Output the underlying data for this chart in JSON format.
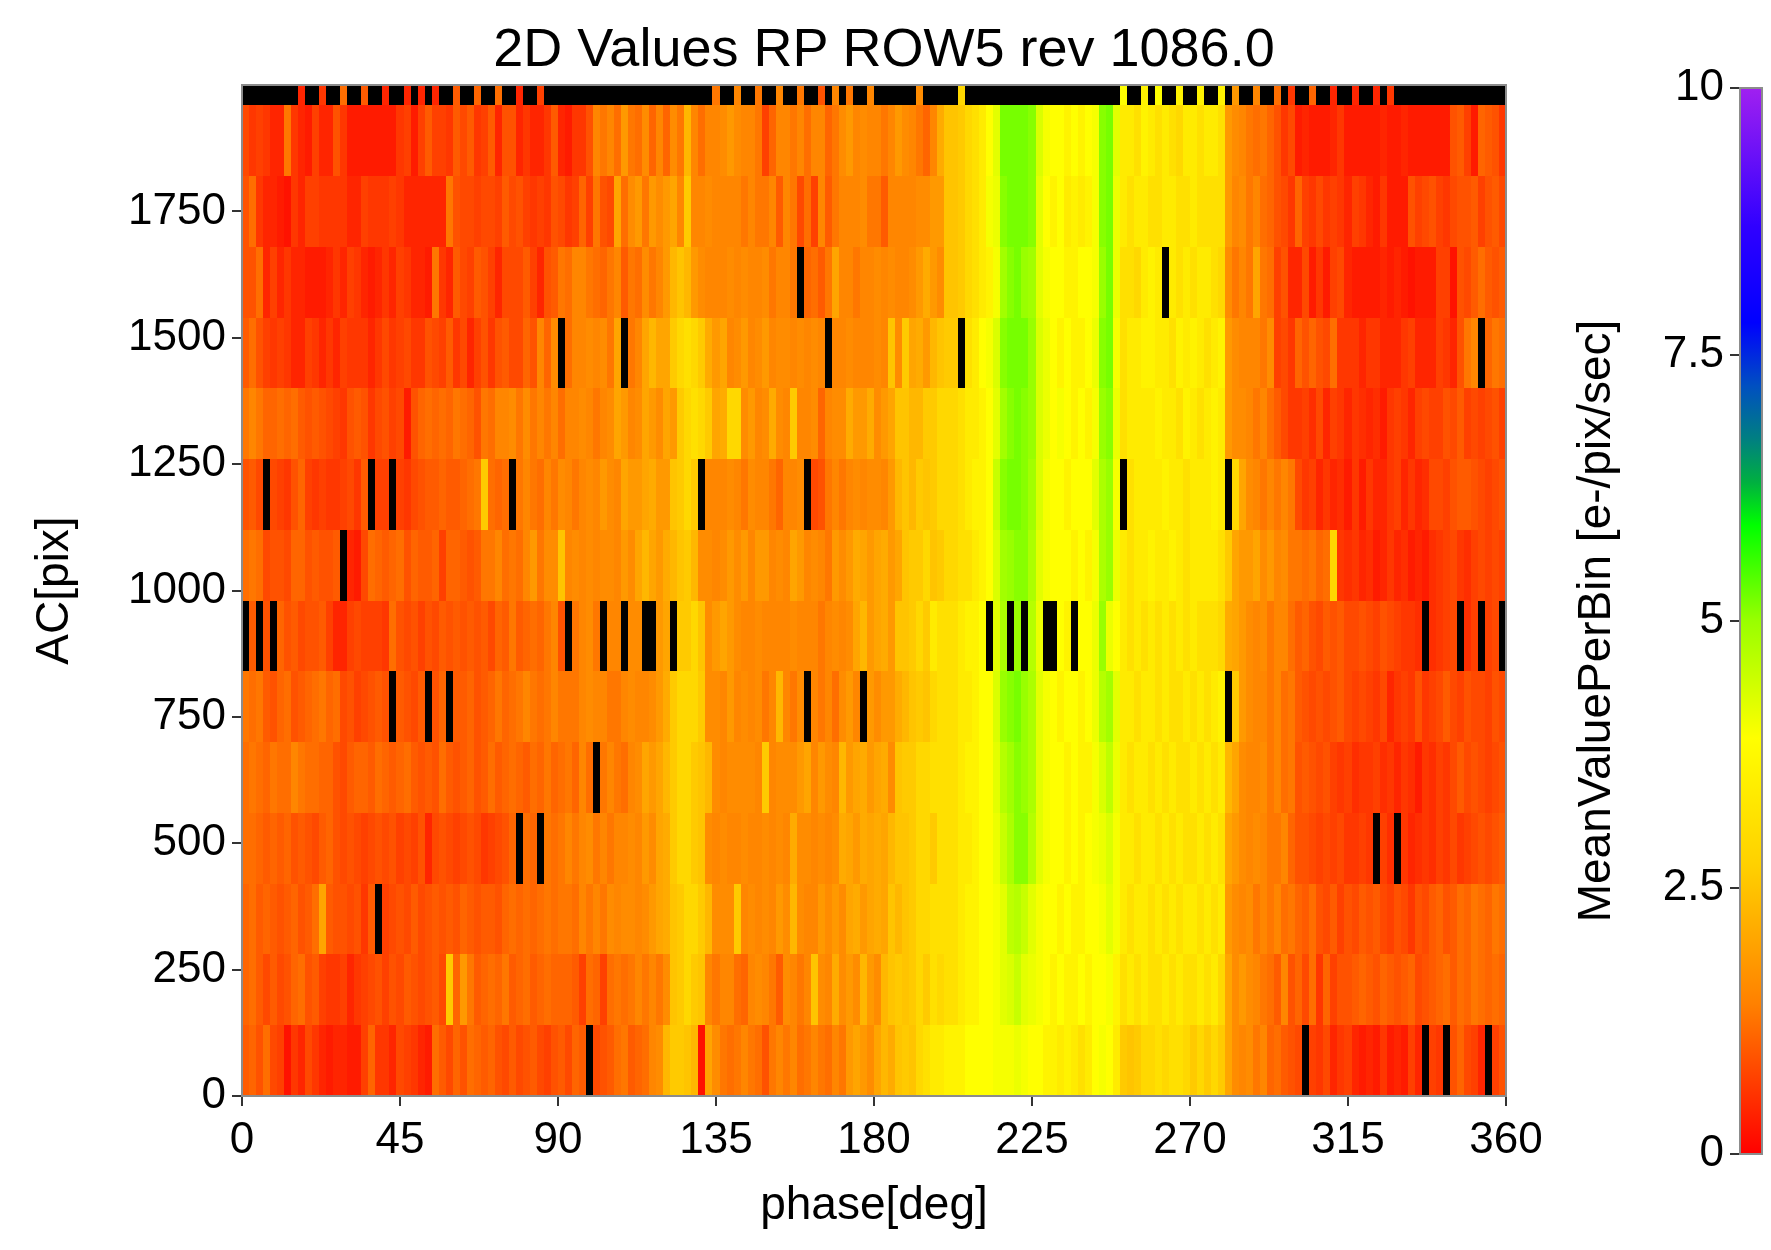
{
  "chart_data": {
    "type": "heatmap",
    "title": "2D Values RP ROW5 rev 1086.0",
    "xlabel": "phase[deg]",
    "ylabel": "AC[pix]",
    "clabel": "MeanValuePerBin [e-/pix/sec]",
    "x": [
      1,
      3,
      5,
      7,
      9,
      11,
      13,
      15,
      17,
      19,
      21,
      23,
      25,
      27,
      29,
      31,
      33,
      35,
      37,
      39,
      41,
      43,
      45,
      47,
      49,
      51,
      53,
      55,
      57,
      59,
      61,
      63,
      65,
      67,
      69,
      71,
      73,
      75,
      77,
      79,
      81,
      83,
      85,
      87,
      89,
      91,
      93,
      95,
      97,
      99,
      101,
      103,
      105,
      107,
      109,
      111,
      113,
      115,
      117,
      119,
      121,
      123,
      125,
      127,
      129,
      131,
      133,
      135,
      137,
      139,
      141,
      143,
      145,
      147,
      149,
      151,
      153,
      155,
      157,
      159,
      161,
      163,
      165,
      167,
      169,
      171,
      173,
      175,
      177,
      179,
      181,
      183,
      185,
      187,
      189,
      191,
      193,
      195,
      197,
      199,
      201,
      203,
      205,
      207,
      209,
      211,
      213,
      215,
      217,
      219,
      221,
      223,
      225,
      227,
      229,
      231,
      233,
      235,
      237,
      239,
      241,
      243,
      245,
      247,
      249,
      251,
      253,
      255,
      257,
      259,
      261,
      263,
      265,
      267,
      269,
      271,
      273,
      275,
      277,
      279,
      281,
      283,
      285,
      287,
      289,
      291,
      293,
      295,
      297,
      299,
      301,
      303,
      305,
      307,
      309,
      311,
      313,
      315,
      317,
      319,
      321,
      323,
      325,
      327,
      329,
      331,
      333,
      335,
      337,
      339,
      341,
      343,
      345,
      347,
      349,
      351,
      353,
      355,
      357,
      359
    ],
    "y": [
      1980,
      1890,
      1750,
      1610,
      1470,
      1330,
      1190,
      1050,
      910,
      770,
      630,
      490,
      350,
      210,
      70
    ],
    "cells": [
      [
        null,
        null,
        null,
        null,
        null,
        null,
        null,
        null,
        0.4,
        null,
        null,
        0.6,
        null,
        null,
        1.2,
        null,
        null,
        1.0,
        null,
        null,
        0.4,
        null,
        null,
        0.4,
        null,
        0.4,
        null,
        0.4,
        null,
        null,
        1.0,
        null,
        null,
        1.1,
        null,
        null,
        1.2,
        null,
        null,
        0.4,
        null,
        null,
        0.7,
        null,
        null,
        null,
        null,
        null,
        null,
        null,
        null,
        null,
        null,
        null,
        null,
        null,
        null,
        null,
        null,
        null,
        null,
        null,
        null,
        null,
        null,
        null,
        null,
        1.3,
        null,
        null,
        1.5,
        null,
        null,
        1.3,
        null,
        null,
        1.5,
        null,
        null,
        1.3,
        null,
        null,
        0.9,
        null,
        1.5,
        null,
        1.3,
        null,
        null,
        1.5,
        null,
        null,
        null,
        null,
        null,
        null,
        1.6,
        null,
        null,
        null,
        null,
        null,
        2.9,
        null,
        null,
        null,
        null,
        null,
        null,
        null,
        null,
        null,
        null,
        null,
        null,
        null,
        null,
        null,
        null,
        null,
        null,
        null,
        null,
        null,
        null,
        3.9,
        null,
        null,
        3.6,
        null,
        3.9,
        null,
        null,
        3.6,
        null,
        null,
        3.6,
        null,
        null,
        3.6,
        null,
        1.8,
        null,
        null,
        1.5,
        null,
        null,
        1.2,
        null,
        0.6,
        null,
        null,
        1.1,
        null,
        null,
        0.4,
        null,
        null,
        0.4,
        null,
        null,
        0.4,
        null,
        0.6,
        null,
        null,
        null,
        null,
        null,
        null,
        null,
        null,
        null,
        null,
        null,
        null,
        null,
        null,
        null,
        null
      ],
      [
        0.8,
        0.6,
        0.7,
        0.6,
        0.4,
        0.4,
        1.3,
        0.6,
        0.4,
        0.3,
        0.7,
        0.4,
        0.4,
        0.9,
        0.6,
        0.3,
        0.3,
        0.3,
        0.3,
        0.3,
        0.3,
        0.3,
        0.6,
        0.7,
        0.3,
        0.7,
        1.0,
        0.7,
        0.7,
        0.6,
        1.0,
        0.8,
        1.0,
        0.6,
        0.7,
        1.0,
        0.4,
        0.9,
        0.9,
        0.4,
        0.6,
        0.4,
        0.4,
        0.6,
        1.0,
        0.4,
        0.3,
        0.6,
        0.6,
        0.9,
        1.5,
        1.3,
        1.5,
        1.2,
        1.8,
        1.3,
        1.2,
        1.6,
        1.1,
        1.5,
        1.1,
        1.6,
        1.3,
        2.3,
        1.5,
        1.2,
        1.5,
        1.5,
        1.6,
        1.8,
        1.6,
        1.5,
        1.5,
        1.3,
        0.7,
        1.1,
        1.5,
        1.5,
        1.3,
        1.5,
        1.2,
        1.5,
        1.5,
        1.1,
        1.3,
        1.6,
        1.8,
        1.5,
        1.6,
        1.5,
        1.5,
        1.3,
        1.5,
        1.8,
        1.6,
        1.5,
        1.3,
        1.1,
        1.5,
        2.1,
        2.5,
        2.5,
        2.6,
        2.9,
        3.1,
        3.4,
        3.9,
        4.2,
        5.2,
        5.2,
        5.2,
        5.2,
        5.1,
        4.3,
        4.0,
        3.9,
        3.9,
        3.6,
        3.9,
        3.6,
        3.9,
        4.0,
        5.1,
        5.2,
        4.2,
        3.4,
        3.4,
        3.1,
        3.6,
        3.4,
        3.1,
        3.4,
        3.1,
        2.9,
        3.4,
        3.4,
        3.1,
        3.4,
        3.4,
        3.1,
        1.8,
        1.6,
        1.5,
        1.3,
        1.2,
        1.3,
        1.1,
        0.9,
        0.6,
        0.8,
        0.3,
        0.4,
        0.3,
        0.3,
        0.3,
        0.4,
        0.6,
        0.3,
        0.3,
        0.3,
        0.3,
        0.3,
        0.4,
        0.3,
        0.3,
        0.4,
        0.3,
        0.3,
        0.3,
        0.3,
        0.3,
        0.3,
        0.9,
        1.0,
        0.7,
        0.3,
        1.1,
        1.0,
        0.9,
        0.6
      ],
      [
        0.9,
        1.2,
        0.6,
        0.4,
        0.4,
        0.3,
        0.2,
        0.6,
        0.4,
        0.7,
        0.7,
        0.6,
        0.6,
        0.6,
        0.6,
        0.4,
        0.4,
        0.7,
        0.6,
        0.6,
        0.6,
        0.7,
        0.6,
        0.4,
        0.4,
        0.4,
        0.4,
        0.4,
        0.4,
        1.3,
        0.9,
        0.8,
        0.8,
        0.7,
        0.8,
        0.8,
        0.7,
        1.0,
        0.8,
        0.9,
        0.7,
        0.6,
        0.7,
        0.6,
        0.9,
        0.8,
        0.6,
        0.7,
        1.1,
        0.7,
        1.3,
        0.9,
        0.8,
        2.0,
        1.2,
        1.6,
        1.8,
        1.3,
        1.8,
        1.6,
        1.8,
        2.0,
        1.5,
        2.6,
        1.5,
        1.5,
        1.6,
        1.5,
        1.5,
        1.5,
        1.5,
        1.3,
        1.5,
        1.3,
        1.3,
        1.5,
        1.0,
        1.5,
        1.3,
        0.8,
        1.2,
        0.7,
        1.5,
        1.0,
        1.3,
        1.5,
        1.5,
        1.5,
        1.6,
        1.3,
        1.3,
        1.0,
        1.5,
        1.5,
        1.5,
        1.5,
        1.6,
        1.6,
        1.8,
        1.8,
        2.5,
        2.5,
        2.6,
        2.9,
        3.1,
        3.4,
        4.0,
        4.1,
        5.1,
        5.2,
        5.2,
        5.2,
        5.1,
        4.2,
        3.9,
        3.6,
        3.9,
        3.4,
        3.6,
        3.4,
        3.6,
        4.0,
        5.1,
        5.2,
        4.1,
        3.4,
        3.1,
        3.4,
        3.4,
        3.1,
        3.1,
        3.4,
        3.4,
        3.1,
        3.1,
        3.4,
        3.1,
        3.1,
        3.1,
        3.1,
        1.8,
        1.5,
        1.6,
        1.3,
        1.5,
        1.2,
        1.1,
        0.9,
        0.8,
        0.6,
        1.1,
        0.7,
        0.6,
        0.8,
        0.6,
        0.7,
        0.6,
        0.4,
        0.7,
        0.6,
        0.4,
        0.3,
        0.6,
        0.3,
        0.3,
        0.3,
        0.9,
        0.7,
        0.8,
        0.9,
        0.7,
        0.6,
        0.8,
        0.9,
        0.9,
        1.0,
        0.7,
        0.9,
        1.0,
        0.8
      ],
      [
        0.9,
        0.9,
        1.2,
        0.4,
        0.7,
        0.4,
        0.6,
        0.4,
        0.4,
        0.3,
        0.3,
        0.3,
        0.4,
        0.6,
        0.4,
        0.7,
        0.6,
        0.4,
        0.3,
        0.4,
        0.6,
        0.4,
        0.7,
        0.6,
        0.4,
        0.4,
        0.3,
        1.3,
        0.6,
        0.4,
        1.0,
        0.8,
        0.7,
        1.0,
        0.9,
        0.7,
        0.4,
        0.8,
        0.8,
        0.8,
        1.0,
        0.7,
        0.4,
        0.9,
        1.0,
        1.3,
        1.2,
        1.5,
        1.5,
        1.3,
        1.2,
        1.1,
        1.3,
        1.5,
        1.0,
        1.3,
        1.2,
        1.6,
        1.3,
        1.5,
        1.8,
        2.3,
        2.5,
        2.3,
        1.8,
        1.6,
        1.5,
        1.5,
        1.5,
        1.6,
        1.5,
        1.6,
        1.5,
        1.5,
        1.6,
        1.3,
        1.5,
        1.5,
        1.3,
        null,
        1.1,
        1.2,
        1.0,
        1.3,
        2.0,
        1.5,
        1.5,
        1.3,
        1.5,
        1.5,
        1.6,
        1.5,
        1.6,
        1.5,
        1.5,
        1.6,
        1.8,
        2.1,
        1.8,
        1.6,
        2.5,
        2.5,
        2.6,
        2.9,
        3.1,
        3.4,
        3.6,
        4.0,
        4.9,
        5.1,
        5.2,
        5.0,
        4.9,
        4.2,
        4.0,
        3.9,
        3.9,
        3.6,
        3.6,
        3.9,
        3.9,
        4.0,
        5.0,
        5.2,
        4.1,
        3.1,
        3.1,
        2.9,
        3.4,
        3.6,
        3.4,
        null,
        3.4,
        3.1,
        3.4,
        3.1,
        3.4,
        3.4,
        3.1,
        2.9,
        1.6,
        1.3,
        1.5,
        1.3,
        2.0,
        1.3,
        1.2,
        0.7,
        0.9,
        0.4,
        0.4,
        0.8,
        0.3,
        0.6,
        0.3,
        0.7,
        0.8,
        0.4,
        0.3,
        0.3,
        0.3,
        0.3,
        0.4,
        0.3,
        0.4,
        0.3,
        0.2,
        0.3,
        0.3,
        0.3,
        0.7,
        0.7,
        0.2,
        0.9,
        0.8,
        1.0,
        1.2,
        1.0,
        0.9,
        1.0
      ],
      [
        1.0,
        1.2,
        0.9,
        0.7,
        0.6,
        0.7,
        0.6,
        0.4,
        0.4,
        0.7,
        0.6,
        0.4,
        0.6,
        0.4,
        0.7,
        0.6,
        0.6,
        0.6,
        0.4,
        0.6,
        0.8,
        0.6,
        0.7,
        0.8,
        0.6,
        0.6,
        0.9,
        0.8,
        0.7,
        1.0,
        0.6,
        0.8,
        0.4,
        0.7,
        0.9,
        0.6,
        0.9,
        1.0,
        0.8,
        0.8,
        1.1,
        0.9,
        1.5,
        1.1,
        1.6,
        null,
        1.2,
        1.5,
        1.5,
        1.6,
        1.5,
        1.6,
        1.3,
        2.0,
        null,
        1.3,
        1.5,
        2.0,
        2.3,
        2.0,
        2.0,
        2.6,
        2.9,
        3.1,
        2.9,
        2.6,
        2.1,
        1.8,
        2.0,
        1.5,
        1.6,
        1.8,
        1.5,
        1.6,
        1.8,
        1.5,
        1.6,
        1.6,
        1.5,
        1.6,
        1.5,
        1.6,
        1.5,
        null,
        1.5,
        1.5,
        1.6,
        1.5,
        1.5,
        1.5,
        1.6,
        1.5,
        2.5,
        1.6,
        2.6,
        2.0,
        2.1,
        1.8,
        2.3,
        2.5,
        2.6,
        2.6,
        null,
        3.1,
        3.4,
        3.9,
        4.0,
        4.3,
        5.1,
        5.2,
        5.2,
        5.2,
        5.0,
        4.3,
        4.1,
        3.9,
        3.6,
        3.9,
        3.6,
        3.6,
        3.9,
        4.1,
        5.1,
        5.2,
        4.0,
        3.1,
        3.4,
        3.4,
        3.6,
        3.6,
        3.4,
        3.4,
        3.1,
        3.6,
        3.4,
        3.6,
        3.4,
        3.1,
        3.4,
        3.6,
        1.8,
        1.6,
        1.5,
        1.5,
        1.5,
        1.3,
        1.6,
        0.7,
        0.8,
        0.6,
        1.1,
        0.9,
        1.1,
        0.9,
        0.8,
        1.2,
        0.6,
        0.6,
        0.6,
        0.4,
        0.6,
        0.6,
        0.4,
        0.4,
        0.4,
        0.6,
        0.7,
        0.4,
        0.4,
        0.4,
        0.7,
        0.6,
        0.4,
        0.9,
        1.3,
        1.5,
        null,
        1.1,
        1.3,
        1.2
      ],
      [
        1.3,
        1.5,
        1.3,
        1.1,
        1.1,
        1.2,
        1.1,
        1.2,
        1.0,
        0.9,
        1.0,
        0.9,
        0.8,
        0.7,
        0.6,
        0.9,
        1.0,
        0.9,
        0.6,
        0.8,
        0.9,
        0.7,
        0.8,
        0.3,
        0.9,
        1.1,
        1.2,
        1.1,
        1.2,
        1.1,
        1.3,
        1.2,
        1.1,
        0.9,
        1.3,
        1.2,
        1.5,
        1.5,
        1.6,
        1.3,
        1.6,
        1.3,
        1.5,
        1.3,
        1.5,
        1.2,
        1.5,
        1.5,
        1.6,
        1.5,
        1.3,
        1.5,
        1.6,
        2.0,
        1.8,
        1.5,
        1.6,
        2.0,
        1.8,
        1.6,
        2.0,
        1.8,
        2.6,
        2.9,
        3.1,
        2.9,
        2.6,
        2.0,
        2.1,
        2.9,
        2.9,
        1.6,
        1.8,
        1.5,
        1.6,
        2.1,
        1.6,
        1.5,
        2.6,
        1.5,
        1.5,
        1.6,
        1.1,
        1.5,
        1.6,
        1.6,
        2.1,
        1.8,
        1.8,
        2.1,
        1.6,
        1.8,
        2.0,
        2.5,
        2.5,
        2.3,
        2.3,
        2.6,
        2.6,
        2.9,
        2.9,
        2.9,
        3.1,
        3.4,
        3.4,
        3.6,
        3.9,
        4.2,
        4.9,
        5.1,
        5.2,
        5.1,
        5.0,
        4.3,
        4.1,
        3.9,
        4.0,
        3.9,
        3.6,
        3.9,
        3.6,
        4.0,
        5.0,
        5.1,
        4.1,
        3.1,
        3.4,
        3.4,
        3.4,
        3.4,
        3.6,
        3.4,
        3.4,
        3.1,
        3.6,
        3.4,
        3.1,
        3.4,
        3.6,
        3.4,
        1.8,
        1.6,
        1.6,
        1.5,
        1.3,
        1.5,
        1.2,
        1.0,
        0.8,
        0.6,
        0.6,
        0.7,
        0.5,
        0.8,
        0.4,
        0.7,
        0.6,
        0.4,
        0.6,
        0.5,
        0.4,
        0.5,
        0.3,
        0.6,
        0.7,
        0.6,
        0.4,
        0.7,
        0.8,
        0.7,
        0.7,
        0.9,
        0.8,
        1.0,
        0.7,
        0.8,
        0.7,
        0.8,
        0.9,
        0.7
      ],
      [
        0.9,
        1.0,
        0.8,
        null,
        0.8,
        0.7,
        0.6,
        0.9,
        1.1,
        0.7,
        0.6,
        0.7,
        0.6,
        0.6,
        0.7,
        0.8,
        0.6,
        1.0,
        null,
        0.7,
        0.7,
        null,
        0.7,
        0.6,
        0.8,
        0.9,
        1.0,
        1.0,
        1.1,
        1.0,
        1.0,
        1.1,
        1.2,
        1.3,
        2.6,
        1.2,
        1.1,
        1.2,
        null,
        1.3,
        1.5,
        1.3,
        1.2,
        1.5,
        1.3,
        1.6,
        1.5,
        1.3,
        1.5,
        1.6,
        1.5,
        1.8,
        1.6,
        1.5,
        2.0,
        1.8,
        1.8,
        2.0,
        2.1,
        1.8,
        1.8,
        2.5,
        2.6,
        2.9,
        2.6,
        null,
        1.5,
        1.5,
        1.5,
        1.6,
        1.5,
        1.3,
        1.6,
        1.5,
        1.5,
        1.3,
        1.1,
        1.5,
        1.5,
        1.6,
        null,
        0.8,
        0.9,
        1.3,
        1.5,
        1.3,
        1.5,
        1.6,
        1.5,
        1.6,
        1.6,
        1.5,
        1.8,
        2.3,
        2.5,
        2.3,
        2.6,
        2.5,
        2.6,
        2.9,
        2.9,
        2.9,
        3.1,
        3.4,
        3.6,
        3.6,
        3.9,
        4.5,
        5.1,
        5.2,
        5.2,
        5.1,
        4.9,
        4.3,
        4.0,
        3.9,
        3.9,
        3.6,
        3.9,
        3.9,
        3.9,
        4.2,
        4.8,
        5.0,
        4.0,
        null,
        3.1,
        3.4,
        3.4,
        3.4,
        3.4,
        3.6,
        3.4,
        3.4,
        3.1,
        3.4,
        3.4,
        3.4,
        3.6,
        3.4,
        null,
        2.9,
        2.0,
        1.6,
        1.5,
        1.3,
        1.5,
        1.3,
        1.5,
        1.3,
        0.8,
        0.6,
        0.7,
        0.4,
        0.6,
        0.4,
        0.5,
        0.3,
        0.6,
        0.3,
        0.6,
        0.4,
        0.4,
        0.6,
        0.7,
        0.4,
        0.6,
        0.4,
        0.5,
        0.8,
        0.8,
        0.7,
        0.9,
        1.0,
        1.0,
        0.9,
        0.8,
        0.7,
        0.8,
        0.9
      ],
      [
        1.2,
        1.3,
        1.2,
        0.8,
        0.9,
        0.9,
        0.8,
        1.1,
        1.1,
        0.9,
        1.0,
        0.9,
        0.9,
        1.0,
        null,
        0.4,
        0.3,
        0.8,
        1.2,
        1.1,
        1.0,
        1.1,
        1.2,
        0.9,
        1.1,
        1.0,
        1.0,
        1.1,
        0.7,
        1.1,
        1.1,
        1.0,
        0.9,
        1.0,
        1.3,
        1.3,
        1.5,
        1.2,
        1.3,
        1.2,
        1.5,
        1.8,
        1.3,
        1.6,
        1.6,
        2.5,
        1.5,
        1.6,
        1.5,
        1.6,
        1.5,
        1.6,
        1.6,
        1.5,
        1.8,
        1.6,
        2.0,
        2.3,
        2.0,
        1.8,
        2.1,
        2.3,
        2.5,
        2.6,
        2.3,
        1.6,
        1.6,
        1.5,
        1.6,
        1.8,
        1.6,
        1.8,
        1.5,
        1.8,
        1.8,
        1.5,
        1.6,
        1.5,
        2.0,
        1.8,
        1.5,
        1.6,
        1.5,
        1.3,
        1.8,
        1.6,
        1.8,
        2.1,
        2.0,
        1.8,
        2.0,
        2.1,
        1.8,
        2.0,
        2.5,
        2.6,
        2.6,
        2.9,
        2.5,
        2.6,
        2.9,
        2.9,
        3.1,
        3.1,
        3.4,
        3.6,
        3.9,
        4.3,
        4.9,
        5.0,
        5.1,
        5.1,
        4.8,
        4.2,
        4.0,
        3.9,
        3.9,
        3.9,
        3.6,
        3.9,
        3.6,
        4.0,
        4.8,
        5.0,
        4.1,
        3.4,
        3.1,
        3.4,
        3.4,
        3.6,
        3.4,
        3.4,
        3.6,
        3.4,
        3.1,
        3.4,
        3.4,
        3.4,
        3.4,
        3.1,
        2.6,
        2.0,
        1.8,
        1.8,
        2.0,
        1.6,
        1.8,
        1.5,
        1.6,
        1.3,
        1.3,
        1.2,
        1.3,
        1.1,
        1.2,
        2.9,
        0.6,
        0.5,
        0.6,
        0.4,
        0.5,
        0.3,
        0.4,
        0.6,
        0.4,
        0.5,
        0.3,
        0.4,
        0.3,
        0.5,
        0.6,
        0.7,
        0.8,
        0.6,
        0.5,
        0.7,
        0.8,
        0.7,
        0.8,
        0.7
      ],
      [
        null,
        1.0,
        null,
        0.9,
        null,
        1.1,
        0.9,
        1.0,
        0.8,
        0.9,
        0.9,
        1.0,
        0.7,
        0.4,
        0.4,
        0.7,
        0.8,
        0.7,
        0.7,
        0.7,
        0.6,
        1.2,
        0.9,
        0.8,
        0.9,
        0.7,
        0.9,
        0.8,
        1.0,
        0.9,
        1.0,
        0.9,
        1.0,
        0.9,
        1.0,
        0.8,
        1.1,
        1.0,
        1.3,
        1.0,
        1.1,
        1.2,
        1.1,
        1.3,
        1.5,
        0.9,
        null,
        1.3,
        1.5,
        1.6,
        1.3,
        null,
        1.5,
        1.5,
        null,
        1.6,
        1.6,
        null,
        null,
        1.8,
        2.0,
        null,
        2.6,
        2.6,
        2.9,
        2.5,
        1.6,
        1.8,
        2.0,
        1.8,
        1.6,
        1.5,
        1.5,
        1.6,
        1.5,
        1.5,
        1.5,
        1.5,
        1.6,
        1.5,
        1.5,
        1.5,
        1.3,
        1.5,
        1.6,
        1.5,
        1.6,
        2.0,
        2.3,
        1.8,
        2.0,
        2.1,
        1.8,
        2.5,
        2.5,
        2.6,
        2.9,
        2.6,
        3.4,
        3.1,
        3.1,
        3.1,
        3.4,
        3.6,
        3.6,
        3.9,
        null,
        4.2,
        4.8,
        null,
        5.0,
        null,
        4.7,
        4.1,
        null,
        null,
        3.9,
        3.6,
        null,
        3.9,
        3.9,
        4.1,
        5.0,
        4.1,
        3.9,
        3.4,
        3.1,
        3.4,
        3.1,
        3.4,
        3.1,
        3.4,
        3.1,
        3.4,
        3.1,
        3.4,
        3.1,
        3.1,
        3.1,
        2.9,
        2.1,
        2.0,
        1.8,
        1.6,
        1.5,
        1.6,
        1.3,
        1.5,
        1.5,
        1.2,
        1.0,
        1.1,
        0.9,
        0.8,
        1.0,
        0.9,
        1.0,
        0.8,
        0.8,
        0.9,
        0.8,
        0.7,
        0.9,
        0.8,
        0.7,
        0.6,
        0.6,
        0.5,
        null,
        0.5,
        0.6,
        0.7,
        0.8,
        null,
        0.5,
        0.7,
        null,
        0.7,
        0.8,
        null
      ],
      [
        1.3,
        1.2,
        1.3,
        1.0,
        0.9,
        1.1,
        1.2,
        0.9,
        1.0,
        1.1,
        1.2,
        1.3,
        1.1,
        1.2,
        0.8,
        0.9,
        0.7,
        0.8,
        0.9,
        1.0,
        0.9,
        null,
        1.0,
        0.9,
        0.8,
        1.0,
        null,
        0.9,
        1.1,
        null,
        1.0,
        1.0,
        1.1,
        0.9,
        1.0,
        1.1,
        1.3,
        1.1,
        1.2,
        1.3,
        1.5,
        1.3,
        1.2,
        1.3,
        1.5,
        1.3,
        1.3,
        1.3,
        1.5,
        1.6,
        1.5,
        1.5,
        1.3,
        1.3,
        1.5,
        1.6,
        1.5,
        1.5,
        1.6,
        1.8,
        2.1,
        2.6,
        2.9,
        2.9,
        2.9,
        2.6,
        1.6,
        1.6,
        1.5,
        1.8,
        1.5,
        1.6,
        1.5,
        1.6,
        1.3,
        1.5,
        2.3,
        1.5,
        1.3,
        1.6,
        null,
        1.5,
        1.3,
        1.5,
        1.2,
        1.6,
        1.8,
        1.5,
        null,
        1.8,
        1.6,
        1.8,
        1.8,
        2.1,
        2.3,
        2.5,
        2.6,
        2.5,
        2.9,
        3.1,
        3.1,
        3.1,
        3.4,
        3.4,
        3.6,
        3.9,
        3.9,
        4.3,
        5.0,
        5.1,
        5.2,
        5.0,
        4.8,
        4.2,
        4.0,
        3.9,
        3.6,
        3.9,
        3.9,
        3.6,
        3.9,
        4.1,
        4.7,
        4.9,
        4.2,
        3.4,
        3.4,
        3.1,
        3.4,
        3.4,
        3.1,
        3.4,
        3.1,
        3.1,
        3.4,
        3.1,
        3.4,
        3.1,
        3.4,
        3.6,
        null,
        2.6,
        1.8,
        1.6,
        1.5,
        1.5,
        1.3,
        1.5,
        1.2,
        1.3,
        1.0,
        0.9,
        0.8,
        0.9,
        0.8,
        0.9,
        1.0,
        0.8,
        0.7,
        0.8,
        0.7,
        0.6,
        0.8,
        0.4,
        0.6,
        0.7,
        0.6,
        0.9,
        0.6,
        0.7,
        0.8,
        1.0,
        0.8,
        0.7,
        0.9,
        0.8,
        0.8,
        0.7,
        0.9,
        0.8
      ],
      [
        1.2,
        1.3,
        1.2,
        1.1,
        1.3,
        1.2,
        1.2,
        1.5,
        1.3,
        1.2,
        1.2,
        1.1,
        1.1,
        0.9,
        0.8,
        1.0,
        1.1,
        1.1,
        1.0,
        1.2,
        1.1,
        1.0,
        1.1,
        1.2,
        1.0,
        0.9,
        1.0,
        0.9,
        1.2,
        1.0,
        0.9,
        1.0,
        1.1,
        0.9,
        1.0,
        1.2,
        1.0,
        1.1,
        1.2,
        1.1,
        1.0,
        1.2,
        1.1,
        1.3,
        1.1,
        1.2,
        1.3,
        1.1,
        1.5,
        1.2,
        null,
        1.3,
        1.5,
        1.3,
        1.2,
        1.5,
        1.6,
        2.0,
        1.8,
        2.0,
        2.3,
        2.6,
        2.9,
        2.9,
        2.6,
        2.5,
        2.3,
        1.6,
        1.5,
        1.6,
        1.6,
        1.6,
        1.6,
        1.5,
        2.6,
        1.5,
        1.6,
        1.6,
        1.6,
        1.8,
        2.0,
        1.5,
        1.8,
        1.6,
        1.5,
        2.3,
        1.8,
        2.0,
        2.1,
        1.8,
        2.0,
        2.1,
        1.6,
        2.5,
        2.6,
        2.6,
        2.9,
        2.9,
        3.1,
        3.1,
        3.1,
        3.1,
        3.4,
        3.6,
        3.6,
        3.9,
        3.9,
        4.2,
        4.7,
        4.9,
        5.1,
        5.0,
        4.8,
        4.2,
        4.0,
        3.9,
        3.9,
        3.6,
        3.9,
        3.6,
        3.6,
        4.0,
        4.3,
        4.6,
        4.1,
        3.4,
        3.1,
        3.4,
        3.4,
        3.1,
        3.4,
        3.1,
        3.4,
        3.1,
        3.1,
        3.4,
        3.1,
        3.4,
        3.1,
        3.4,
        2.3,
        2.0,
        1.6,
        1.5,
        1.5,
        1.6,
        1.3,
        1.5,
        1.2,
        1.3,
        0.9,
        1.0,
        0.9,
        0.8,
        0.9,
        0.7,
        0.6,
        0.7,
        0.5,
        0.6,
        0.6,
        0.7,
        0.5,
        0.6,
        0.4,
        0.6,
        0.5,
        0.3,
        0.6,
        0.5,
        0.7,
        0.6,
        0.8,
        1.0,
        0.8,
        0.9,
        0.8,
        0.7,
        0.8,
        0.9
      ],
      [
        1.2,
        1.2,
        1.1,
        1.0,
        1.1,
        1.0,
        1.1,
        0.9,
        1.0,
        0.9,
        0.8,
        1.0,
        1.1,
        0.9,
        0.8,
        0.9,
        0.8,
        0.7,
        0.8,
        0.9,
        0.8,
        0.9,
        0.7,
        0.8,
        0.7,
        0.9,
        0.4,
        0.8,
        0.9,
        0.8,
        0.7,
        0.8,
        0.9,
        0.8,
        0.6,
        0.7,
        0.8,
        0.9,
        1.1,
        null,
        1.2,
        1.1,
        null,
        1.3,
        1.2,
        1.3,
        1.5,
        1.3,
        1.5,
        1.6,
        1.3,
        1.5,
        1.3,
        1.5,
        1.5,
        1.6,
        1.5,
        1.8,
        1.6,
        2.0,
        2.1,
        2.6,
        2.9,
        2.9,
        2.6,
        2.5,
        1.6,
        1.5,
        1.6,
        1.5,
        1.5,
        1.6,
        1.5,
        1.5,
        1.6,
        1.5,
        1.6,
        1.5,
        2.1,
        1.6,
        1.6,
        1.5,
        1.6,
        1.5,
        1.6,
        2.1,
        2.0,
        1.8,
        2.1,
        2.0,
        2.1,
        2.0,
        2.3,
        2.5,
        2.5,
        2.6,
        2.9,
        2.9,
        2.6,
        3.1,
        3.1,
        3.1,
        3.4,
        3.4,
        3.6,
        3.9,
        3.9,
        4.1,
        4.5,
        4.8,
        5.1,
        5.1,
        4.7,
        4.2,
        4.0,
        3.9,
        3.9,
        3.6,
        3.9,
        3.6,
        3.9,
        4.0,
        4.1,
        4.3,
        4.0,
        3.4,
        3.4,
        3.1,
        3.4,
        3.4,
        3.1,
        3.4,
        3.1,
        3.4,
        3.1,
        3.1,
        3.4,
        3.1,
        3.4,
        3.1,
        2.0,
        1.8,
        1.6,
        1.5,
        1.6,
        1.5,
        1.3,
        1.3,
        1.5,
        1.1,
        0.9,
        0.9,
        0.8,
        0.7,
        0.8,
        0.7,
        0.8,
        0.6,
        0.6,
        0.7,
        0.6,
        null,
        0.7,
        0.5,
        null,
        0.6,
        0.4,
        0.5,
        0.6,
        0.5,
        0.7,
        0.6,
        0.8,
        0.6,
        0.7,
        0.8,
        0.9,
        0.8,
        0.9,
        1.0
      ],
      [
        1.1,
        1.2,
        1.0,
        1.1,
        1.0,
        0.9,
        1.0,
        1.1,
        0.9,
        1.0,
        1.2,
        2.0,
        1.0,
        0.9,
        0.9,
        0.8,
        0.9,
        0.6,
        1.0,
        null,
        0.7,
        0.8,
        0.9,
        0.8,
        1.0,
        0.8,
        0.9,
        1.0,
        0.9,
        1.0,
        0.9,
        1.1,
        1.0,
        0.9,
        1.0,
        1.0,
        0.9,
        1.1,
        1.2,
        1.1,
        1.2,
        1.1,
        1.2,
        1.3,
        1.2,
        1.3,
        1.3,
        1.2,
        1.5,
        1.3,
        1.5,
        1.3,
        1.6,
        1.5,
        1.6,
        1.6,
        1.5,
        1.6,
        1.8,
        2.0,
        2.1,
        2.5,
        2.6,
        2.9,
        2.9,
        2.6,
        2.3,
        1.6,
        1.6,
        1.6,
        2.6,
        1.5,
        1.6,
        1.5,
        1.6,
        1.5,
        1.8,
        1.6,
        2.3,
        1.6,
        1.5,
        1.5,
        1.8,
        1.6,
        1.8,
        1.6,
        2.0,
        2.1,
        1.8,
        2.0,
        2.1,
        2.0,
        2.5,
        2.3,
        2.5,
        2.6,
        2.9,
        2.9,
        3.1,
        3.1,
        3.1,
        3.1,
        3.4,
        3.6,
        3.6,
        3.9,
        3.9,
        4.0,
        4.2,
        4.6,
        4.7,
        4.5,
        4.2,
        4.0,
        3.9,
        3.9,
        3.6,
        3.9,
        3.6,
        3.6,
        3.9,
        3.9,
        4.0,
        4.2,
        4.0,
        3.4,
        3.1,
        3.4,
        3.4,
        3.1,
        3.4,
        3.1,
        3.4,
        3.1,
        3.4,
        3.4,
        3.1,
        3.4,
        3.1,
        3.4,
        1.8,
        1.6,
        1.5,
        1.6,
        1.3,
        1.5,
        1.3,
        1.5,
        1.2,
        1.3,
        1.1,
        1.0,
        1.2,
        0.9,
        0.8,
        1.0,
        0.7,
        0.9,
        0.8,
        1.0,
        0.9,
        1.0,
        0.8,
        0.7,
        0.9,
        0.8,
        0.6,
        0.9,
        0.8,
        1.0,
        1.1,
        0.9,
        1.0,
        1.2,
        1.1,
        1.3,
        1.2,
        1.1,
        1.3,
        1.2
      ],
      [
        1.1,
        1.2,
        1.0,
        0.8,
        1.0,
        0.8,
        0.9,
        1.1,
        1.2,
        0.9,
        1.0,
        0.7,
        0.6,
        0.6,
        0.7,
        0.4,
        0.6,
        0.7,
        0.8,
        0.9,
        0.7,
        0.9,
        0.8,
        1.0,
        0.9,
        0.8,
        0.9,
        1.0,
        0.8,
        2.6,
        1.1,
        1.8,
        1.3,
        1.0,
        1.1,
        1.2,
        1.1,
        1.3,
        1.0,
        1.1,
        1.2,
        1.0,
        1.1,
        1.2,
        1.1,
        1.1,
        1.1,
        1.0,
        0.7,
        1.2,
        1.1,
        0.7,
        1.2,
        1.3,
        1.2,
        1.3,
        1.5,
        1.3,
        1.5,
        1.3,
        1.6,
        2.5,
        2.6,
        2.9,
        2.6,
        2.5,
        1.5,
        1.3,
        1.5,
        1.5,
        1.2,
        1.1,
        1.5,
        1.6,
        1.5,
        1.3,
        1.0,
        1.6,
        1.5,
        1.3,
        1.5,
        2.5,
        1.6,
        1.5,
        2.1,
        1.6,
        1.8,
        1.6,
        2.3,
        1.8,
        1.6,
        2.3,
        2.5,
        2.6,
        2.5,
        2.6,
        2.9,
        2.6,
        3.1,
        2.9,
        3.1,
        3.1,
        3.4,
        3.6,
        3.6,
        3.9,
        3.9,
        4.0,
        4.2,
        4.3,
        4.5,
        4.2,
        4.1,
        4.0,
        3.9,
        3.6,
        3.9,
        3.6,
        3.6,
        3.9,
        3.6,
        3.9,
        3.9,
        4.0,
        3.6,
        3.1,
        3.4,
        3.1,
        3.4,
        3.1,
        3.1,
        3.4,
        3.1,
        3.4,
        3.1,
        3.1,
        3.4,
        3.1,
        3.4,
        2.9,
        2.0,
        1.6,
        1.8,
        1.6,
        1.5,
        1.3,
        1.2,
        1.0,
        1.5,
        0.9,
        1.1,
        0.8,
        1.2,
        0.6,
        1.1,
        0.7,
        0.9,
        0.9,
        1.0,
        1.1,
        1.0,
        0.9,
        1.1,
        1.0,
        0.9,
        1.0,
        1.1,
        0.8,
        0.9,
        1.0,
        1.1,
        1.2,
        1.0,
        1.2,
        1.1,
        1.3,
        1.2,
        1.1,
        1.2,
        1.1
      ],
      [
        1.0,
        1.1,
        0.9,
        1.2,
        0.8,
        0.7,
        0.2,
        0.6,
        0.4,
        0.8,
        0.6,
        0.4,
        0.3,
        0.4,
        0.4,
        0.3,
        0.3,
        0.7,
        1.1,
        0.6,
        0.6,
        0.4,
        0.8,
        0.7,
        0.6,
        0.4,
        0.3,
        1.2,
        1.0,
        0.8,
        1.1,
        0.9,
        1.2,
        1.1,
        1.0,
        1.1,
        0.9,
        0.8,
        1.0,
        0.8,
        0.9,
        1.0,
        0.8,
        0.7,
        0.9,
        1.0,
        0.8,
        1.1,
        1.0,
        null,
        0.8,
        0.9,
        1.0,
        1.2,
        1.3,
        1.0,
        1.1,
        1.2,
        1.5,
        1.6,
        2.3,
        2.6,
        2.6,
        2.5,
        2.3,
        0.2,
        2.0,
        1.6,
        1.3,
        1.2,
        1.3,
        1.5,
        1.3,
        1.2,
        0.9,
        1.3,
        1.5,
        1.3,
        1.5,
        1.2,
        1.3,
        1.5,
        1.3,
        1.2,
        1.5,
        1.3,
        1.8,
        2.0,
        1.8,
        1.6,
        2.0,
        2.3,
        2.1,
        2.5,
        2.6,
        2.5,
        2.9,
        3.1,
        3.4,
        3.4,
        3.6,
        3.6,
        3.6,
        3.9,
        3.9,
        3.9,
        3.9,
        4.0,
        4.0,
        4.0,
        4.1,
        4.0,
        3.9,
        3.9,
        3.6,
        3.6,
        3.4,
        3.6,
        3.4,
        3.1,
        3.4,
        3.9,
        4.0,
        3.9,
        3.4,
        2.6,
        2.5,
        2.6,
        2.9,
        2.9,
        3.1,
        2.9,
        3.1,
        3.1,
        2.9,
        2.6,
        2.9,
        2.6,
        2.9,
        2.6,
        2.0,
        1.6,
        1.5,
        1.6,
        1.3,
        1.5,
        1.1,
        1.2,
        1.0,
        0.9,
        0.8,
        null,
        0.7,
        0.6,
        0.8,
        0.4,
        0.6,
        0.7,
        0.4,
        0.3,
        0.4,
        0.3,
        0.6,
        0.3,
        0.4,
        0.3,
        0.7,
        0.4,
        null,
        0.7,
        0.6,
        null,
        0.9,
        1.1,
        0.8,
        0.7,
        0.4,
        null,
        0.7,
        0.9
      ]
    ],
    "xlim": [
      0,
      360
    ],
    "ylim": [
      0,
      2000
    ],
    "xticks": [
      0,
      45,
      90,
      135,
      180,
      225,
      270,
      315,
      360
    ],
    "yticks": [
      0,
      250,
      500,
      750,
      1000,
      1250,
      1500,
      1750
    ],
    "clim": [
      0,
      10
    ],
    "cticks": [
      0,
      2.5,
      5,
      7.5,
      10
    ]
  }
}
